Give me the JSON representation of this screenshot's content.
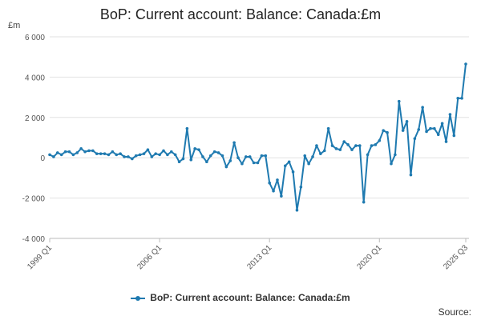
{
  "title": "BoP: Current account: Balance: Canada:£m",
  "unit_label": "£m",
  "legend_label": "BoP: Current account: Balance: Canada:£m",
  "source_label": "Source:",
  "series_color": "#1f7ab0",
  "chart_data": {
    "type": "line",
    "title": "BoP: Current account: Balance: Canada:£m",
    "ylabel": "£m",
    "xlabel": "",
    "ylim": [
      -4000,
      6000
    ],
    "yticks": [
      -4000,
      -2000,
      0,
      2000,
      4000,
      6000
    ],
    "ytick_labels": [
      "-4 000",
      "-2 000",
      "0",
      "2 000",
      "4 000",
      "6 000"
    ],
    "xtick_labels": [
      "1999 Q1",
      "2006 Q1",
      "2013 Q1",
      "2020 Q1",
      "2025 Q3"
    ],
    "xtick_index": [
      0,
      28,
      56,
      84,
      106
    ],
    "grid": true,
    "legend": "bottom",
    "series": [
      {
        "name": "BoP: Current account: Balance: Canada:£m",
        "x_start": "1999 Q1",
        "values": [
          150,
          50,
          250,
          150,
          300,
          300,
          150,
          250,
          450,
          300,
          350,
          350,
          200,
          200,
          200,
          150,
          300,
          150,
          200,
          50,
          50,
          -50,
          100,
          150,
          200,
          400,
          50,
          200,
          150,
          350,
          150,
          300,
          150,
          -200,
          -50,
          1450,
          -100,
          450,
          400,
          50,
          -200,
          100,
          300,
          250,
          100,
          -450,
          -150,
          750,
          0,
          -300,
          50,
          50,
          -250,
          -250,
          100,
          100,
          -1250,
          -1650,
          -1100,
          -1900,
          -400,
          -200,
          -700,
          -2600,
          -1450,
          100,
          -300,
          50,
          600,
          200,
          350,
          1450,
          600,
          450,
          400,
          800,
          650,
          400,
          600,
          600,
          -2200,
          150,
          600,
          650,
          850,
          1350,
          1250,
          -300,
          150,
          2800,
          1350,
          1800,
          -850,
          950,
          1400,
          2500,
          1300,
          1450,
          1450,
          1150,
          1700,
          800,
          2150,
          1100,
          2950,
          2950,
          4650
        ]
      }
    ]
  }
}
